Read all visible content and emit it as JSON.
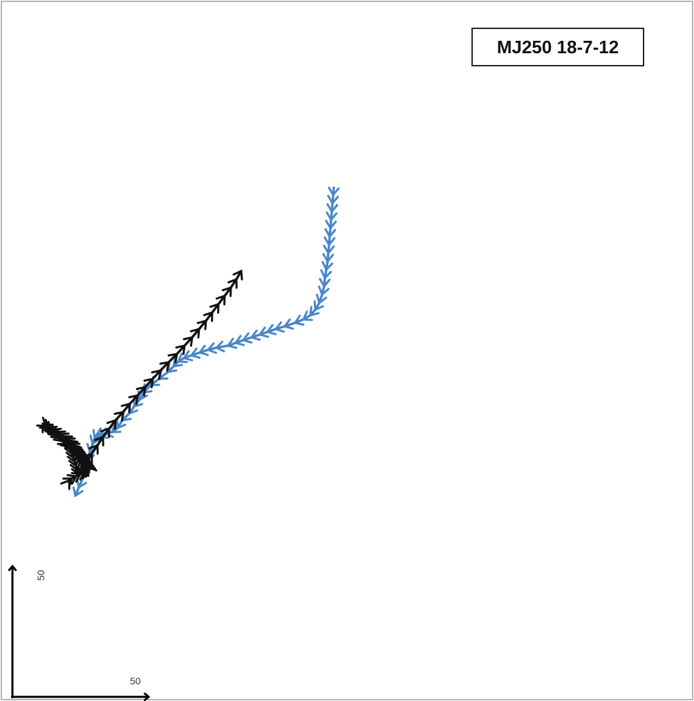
{
  "chart_data": {
    "type": "line",
    "title": "",
    "xlabel": "",
    "ylabel": "",
    "annotation": "MJ250 18-7-12",
    "scale_bar": {
      "x_label": "50",
      "y_label": "50"
    },
    "grid": false,
    "colors": {
      "blue": "#4a86c8",
      "black": "#111111"
    },
    "series": [
      {
        "color": "#4a86c8",
        "marker": "chevron arrow",
        "x": [
          333,
          332,
          331,
          330,
          329,
          328,
          327,
          326,
          325,
          324,
          322,
          320,
          319,
          316,
          312,
          306,
          299,
          289,
          277,
          262,
          249,
          237,
          226,
          214,
          202,
          191,
          180,
          163,
          151,
          139,
          127,
          116,
          108,
          101,
          93,
          80,
          68,
          57,
          52,
          44,
          37,
          27,
          20,
          12,
          2,
          -6,
          -11,
          -13,
          -16,
          -20,
          -24,
          -26,
          -30,
          -36,
          -41
        ],
        "y": [
          40,
          52,
          64,
          76,
          88,
          100,
          112,
          124,
          136,
          148,
          160,
          172,
          184,
          196,
          208,
          218,
          226,
          232,
          237,
          242,
          246,
          250,
          254,
          258,
          262,
          266,
          270,
          273,
          276,
          280,
          284,
          288,
          293,
          300,
          308,
          318,
          327,
          338,
          348,
          358,
          368,
          378,
          389,
          395,
          397,
          398,
          400,
          404,
          412,
          424,
          436,
          448,
          461,
          475,
          487
        ]
      },
      {
        "color": "#111111",
        "marker": "chevron arrow",
        "x": [
          -52,
          -50,
          -46,
          -40,
          -34,
          -28,
          -24,
          -20,
          -22,
          -24,
          -26,
          -28,
          -30,
          -32,
          -34,
          -36,
          -38,
          -40,
          -42,
          -44,
          -47,
          -50,
          -54,
          -58,
          -63,
          -68,
          -74,
          -80,
          -86,
          -88,
          -84,
          -80,
          -76,
          -72,
          -68,
          -64,
          -60,
          -54,
          -50,
          -48,
          -46,
          -44,
          -42,
          -40,
          -38,
          -36,
          -30,
          -24,
          -17,
          -9,
          -1,
          8,
          17,
          28,
          38,
          49,
          60,
          71,
          82,
          94,
          106,
          117,
          128,
          138,
          148,
          157,
          166,
          175,
          184,
          192,
          199
        ],
        "y": [
          468,
          465,
          462,
          459,
          456,
          453,
          451,
          449,
          446,
          443,
          440,
          437,
          434,
          431,
          428,
          425,
          422,
          419,
          416,
          413,
          410,
          407,
          404,
          401,
          398,
          395,
          392,
          389,
          386,
          383,
          386,
          389,
          392,
          396,
          400,
          404,
          408,
          412,
          416,
          420,
          426,
          432,
          438,
          444,
          450,
          456,
          446,
          436,
          426,
          414,
          402,
          390,
          378,
          366,
          354,
          342,
          330,
          318,
          306,
          294,
          282,
          270,
          258,
          246,
          234,
          222,
          210,
          198,
          186,
          174,
          162
        ]
      }
    ]
  }
}
